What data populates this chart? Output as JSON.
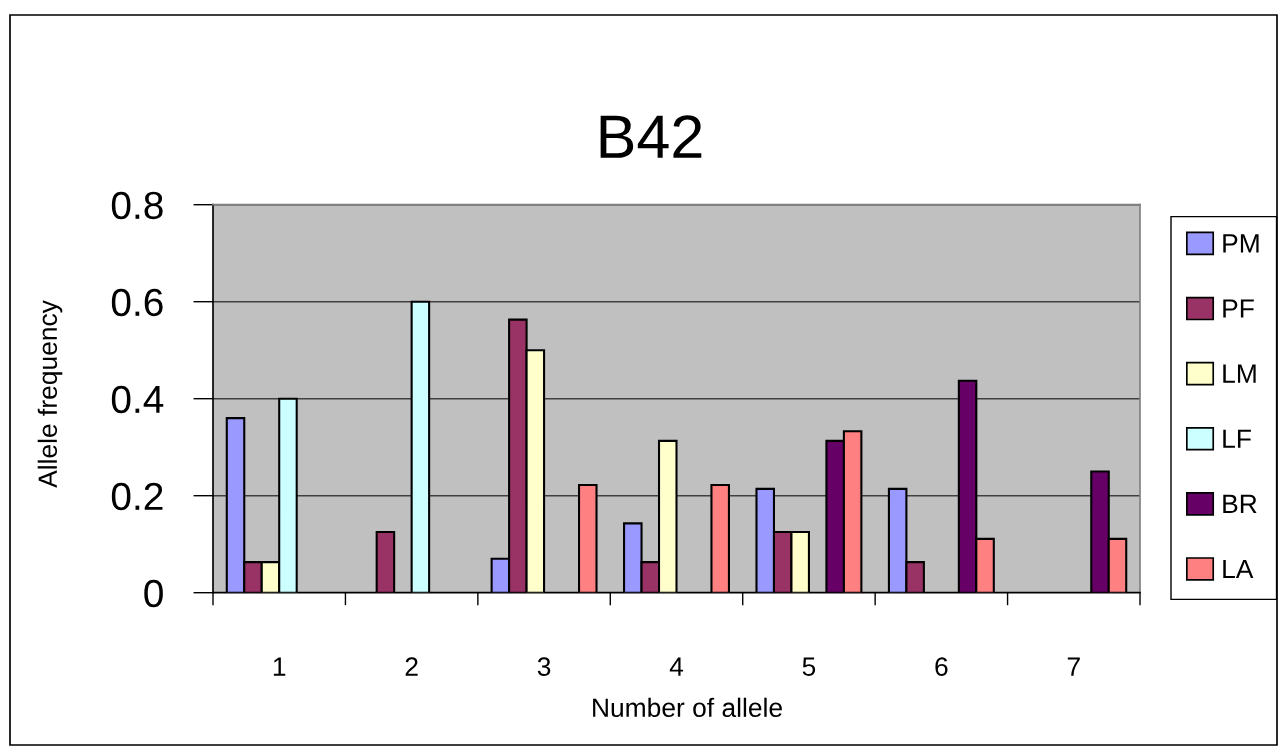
{
  "chart_data": {
    "type": "bar",
    "title": "B42",
    "xlabel": "Number of allele",
    "ylabel": "Allele frequency",
    "categories": [
      "1",
      "2",
      "3",
      "4",
      "5",
      "6",
      "7"
    ],
    "series": [
      {
        "name": "PM",
        "color": "#9999ff",
        "values": [
          0.36,
          null,
          0.07,
          0.143,
          0.214,
          0.214,
          null
        ]
      },
      {
        "name": "PF",
        "color": "#993366",
        "values": [
          0.063,
          0.125,
          0.563,
          0.063,
          0.125,
          0.063,
          null
        ]
      },
      {
        "name": "LM",
        "color": "#ffffcc",
        "values": [
          0.063,
          null,
          0.5,
          0.313,
          0.125,
          null,
          null
        ]
      },
      {
        "name": "LF",
        "color": "#ccffff",
        "values": [
          0.4,
          0.6,
          null,
          null,
          null,
          null,
          null
        ]
      },
      {
        "name": "BR",
        "color": "#660066",
        "values": [
          null,
          null,
          null,
          null,
          0.313,
          0.437,
          0.25
        ]
      },
      {
        "name": "LA",
        "color": "#ff8080",
        "values": [
          null,
          null,
          0.222,
          0.222,
          0.333,
          0.111,
          0.111
        ]
      }
    ],
    "ylim": [
      0,
      0.8
    ],
    "yticks": [
      0,
      0.2,
      0.4,
      0.6,
      0.8
    ],
    "grid": "y",
    "legend": "right"
  }
}
